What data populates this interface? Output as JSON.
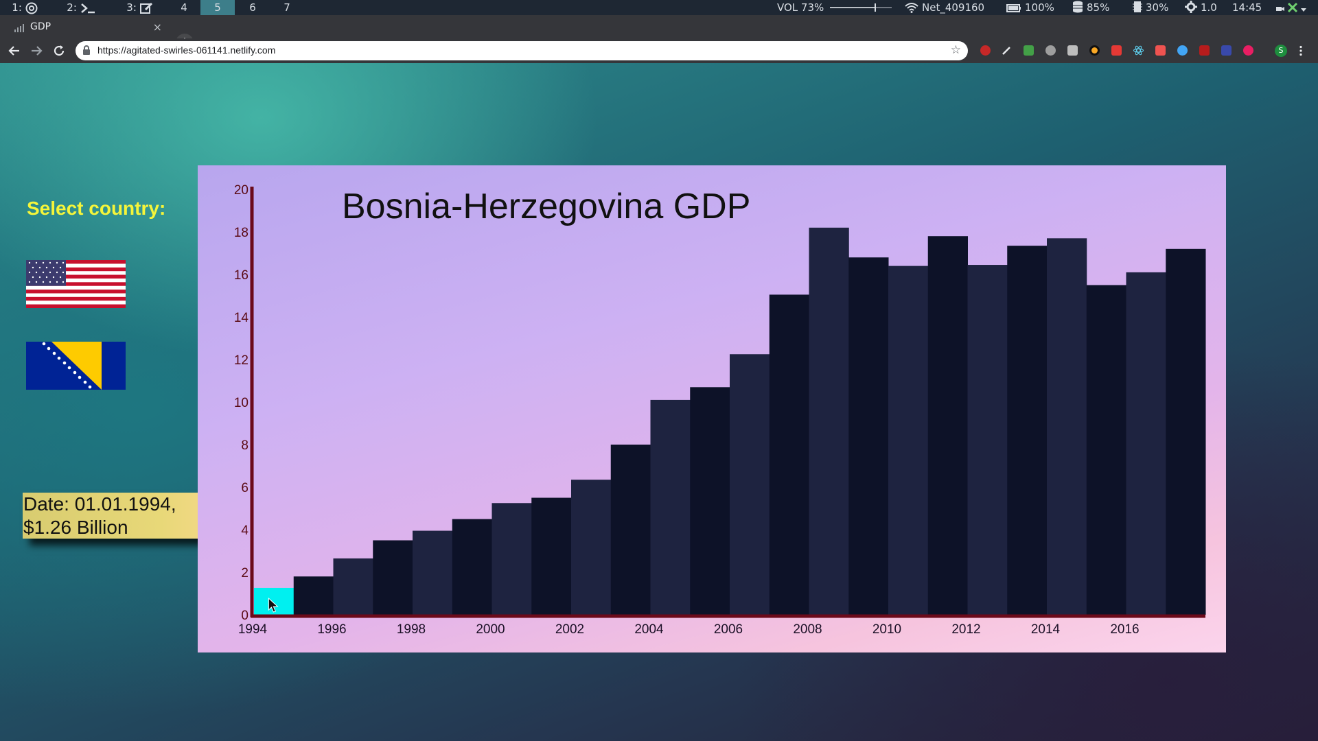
{
  "system_bar": {
    "workspaces": [
      "1:",
      "2:",
      "3:",
      "4",
      "5",
      "6",
      "7"
    ],
    "active_workspace": "5",
    "volume": "VOL 73%",
    "volume_level": 0.73,
    "network": "Net_409160",
    "battery": "100%",
    "disk": "85%",
    "memory": "30%",
    "brightness": "1.0",
    "time": "14:45"
  },
  "browser": {
    "tab_title": "GDP",
    "url": "https://agitated-swirles-061141.netlify.com",
    "new_tab": "+",
    "close_tab": "×",
    "profile_initial": "S"
  },
  "sidebar": {
    "select_label": "Select country:",
    "countries": [
      {
        "name": "United States",
        "icon": "us-flag-icon"
      },
      {
        "name": "Bosnia-Herzegovina",
        "icon": "bosnia-flag-icon"
      }
    ]
  },
  "tooltip": {
    "line1": "Date: 01.01.1994,",
    "line2": "$1.26 Billion"
  },
  "colors": {
    "bar_dark": "#0d1228",
    "bar_mid": "#1e2340",
    "bar_highlight": "#00f0f0",
    "axis": "#6b0a1a",
    "label_yellow": "#f5f53a"
  },
  "chart_data": {
    "type": "bar",
    "title": "Bosnia-Herzegovina GDP",
    "x": [
      1994,
      1995,
      1996,
      1997,
      1998,
      1999,
      2000,
      2001,
      2002,
      2003,
      2004,
      2005,
      2006,
      2007,
      2008,
      2009,
      2010,
      2011,
      2012,
      2013,
      2014,
      2015,
      2016,
      2017
    ],
    "values": [
      1.26,
      1.8,
      2.65,
      3.5,
      3.95,
      4.5,
      5.25,
      5.5,
      6.35,
      8.0,
      10.1,
      10.7,
      12.25,
      15.05,
      18.2,
      16.8,
      16.4,
      17.8,
      16.45,
      17.35,
      17.7,
      15.5,
      16.1,
      17.2
    ],
    "x_tick_labels": [
      "1994",
      "1996",
      "1998",
      "2000",
      "2002",
      "2004",
      "2006",
      "2008",
      "2010",
      "2012",
      "2014",
      "2016"
    ],
    "y_ticks": [
      0,
      2,
      4,
      6,
      8,
      10,
      12,
      14,
      16,
      18,
      20
    ],
    "ylim": [
      0,
      20
    ],
    "highlighted_index": 0,
    "grid": false,
    "xlabel": "",
    "ylabel": ""
  }
}
